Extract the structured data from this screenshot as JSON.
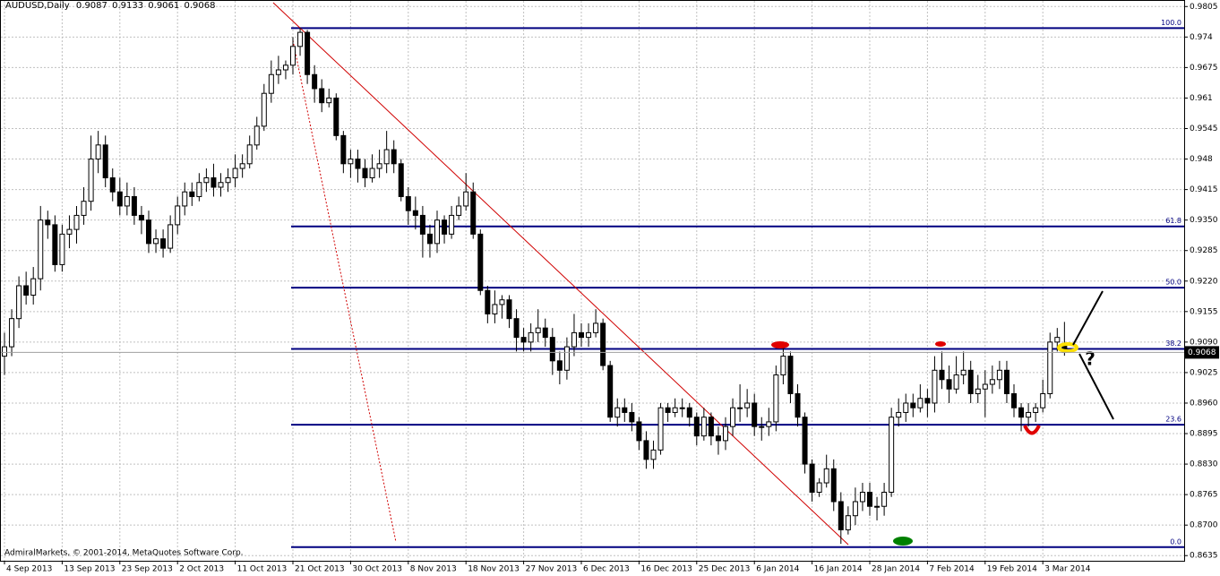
{
  "chart_data": {
    "type": "candlestick",
    "title": "AUDUSD,Daily",
    "categories": [
      "4 Sep 2013",
      null,
      null,
      null,
      null,
      null,
      null,
      null,
      "13 Sep 2013",
      null,
      null,
      null,
      null,
      null,
      null,
      null,
      "23 Sep 2013",
      null,
      null,
      null,
      null,
      null,
      null,
      null,
      "2 Oct 2013",
      null,
      null,
      null,
      null,
      null,
      null,
      null,
      "11 Oct 2013",
      null,
      null,
      null,
      null,
      null,
      null,
      null,
      "21 Oct 2013",
      null,
      null,
      null,
      null,
      null,
      null,
      null,
      "30 Oct 2013",
      null,
      null,
      null,
      null,
      null,
      null,
      null,
      "8 Nov 2013",
      null,
      null,
      null,
      null,
      null,
      null,
      null,
      "18 Nov 2013",
      null,
      null,
      null,
      null,
      null,
      null,
      null,
      "27 Nov 2013",
      null,
      null,
      null,
      null,
      null,
      null,
      null,
      "6 Dec 2013",
      null,
      null,
      null,
      null,
      null,
      null,
      null,
      "16 Dec 2013",
      null,
      null,
      null,
      null,
      null,
      null,
      null,
      "25 Dec 2013",
      null,
      null,
      null,
      null,
      null,
      null,
      null,
      "6 Jan 2014",
      null,
      null,
      null,
      null,
      null,
      null,
      null,
      "16 Jan 2014",
      null,
      null,
      null,
      null,
      null,
      null,
      null,
      "28 Jan 2014",
      null,
      null,
      null,
      null,
      null,
      null,
      null,
      "7 Feb 2014",
      null,
      null,
      null,
      null,
      null,
      null,
      null,
      "19 Feb 2014",
      null,
      null,
      null,
      null,
      null,
      null,
      null,
      "3 Mar 2014",
      null,
      null,
      null
    ],
    "open": [
      0.906,
      0.908,
      0.914,
      0.921,
      0.919,
      0.9225,
      0.935,
      0.934,
      0.9255,
      0.932,
      0.933,
      0.936,
      0.939,
      0.948,
      0.951,
      0.944,
      0.941,
      0.938,
      0.94,
      0.936,
      0.935,
      0.93,
      0.931,
      0.929,
      0.934,
      0.938,
      0.941,
      0.94,
      0.943,
      0.944,
      0.942,
      0.943,
      0.944,
      0.946,
      0.947,
      0.951,
      0.955,
      0.962,
      0.966,
      0.967,
      0.968,
      0.972,
      0.975,
      0.966,
      0.963,
      0.96,
      0.961,
      0.953,
      0.947,
      0.948,
      0.946,
      0.944,
      0.946,
      0.947,
      0.95,
      0.947,
      0.94,
      0.937,
      0.936,
      0.932,
      0.93,
      0.935,
      0.932,
      0.936,
      0.938,
      0.941,
      0.932,
      0.92,
      0.915,
      0.917,
      0.918,
      0.914,
      0.91,
      0.909,
      0.911,
      0.912,
      0.91,
      0.905,
      0.903,
      0.908,
      0.911,
      0.91,
      0.911,
      0.913,
      0.904,
      0.893,
      0.895,
      0.894,
      0.892,
      0.888,
      0.884,
      0.886,
      0.895,
      0.894,
      0.895,
      0.895,
      0.893,
      0.889,
      0.893,
      0.889,
      0.888,
      0.891,
      0.895,
      0.895,
      0.896,
      0.891,
      0.891,
      0.892,
      0.902,
      0.906,
      0.898,
      0.893,
      0.883,
      0.877,
      0.879,
      0.882,
      0.875,
      0.869,
      0.872,
      0.875,
      0.877,
      0.874,
      0.874,
      0.877,
      0.893,
      0.894,
      0.896,
      0.895,
      0.897,
      0.896,
      0.903,
      0.901,
      0.899,
      0.902,
      0.903,
      0.898,
      0.899,
      0.9,
      0.901,
      0.903,
      0.898,
      0.895,
      0.893,
      0.894,
      0.895,
      0.898,
      0.909,
      0.9087
    ],
    "high": [
      0.911,
      0.916,
      0.923,
      0.924,
      0.925,
      0.938,
      0.937,
      0.936,
      0.934,
      0.936,
      0.938,
      0.942,
      0.953,
      0.954,
      0.953,
      0.946,
      0.944,
      0.943,
      0.942,
      0.938,
      0.937,
      0.933,
      0.933,
      0.936,
      0.94,
      0.943,
      0.943,
      0.945,
      0.946,
      0.947,
      0.945,
      0.946,
      0.949,
      0.949,
      0.953,
      0.957,
      0.964,
      0.969,
      0.97,
      0.969,
      0.974,
      0.976,
      0.9755,
      0.968,
      0.965,
      0.963,
      0.962,
      0.954,
      0.95,
      0.95,
      0.948,
      0.949,
      0.95,
      0.954,
      0.952,
      0.948,
      0.942,
      0.94,
      0.938,
      0.934,
      0.937,
      0.936,
      0.938,
      0.94,
      0.945,
      0.943,
      0.933,
      0.921,
      0.92,
      0.919,
      0.919,
      0.916,
      0.912,
      0.913,
      0.916,
      0.914,
      0.912,
      0.907,
      0.91,
      0.915,
      0.913,
      0.913,
      0.916,
      0.914,
      0.905,
      0.897,
      0.897,
      0.896,
      0.893,
      0.89,
      0.888,
      0.896,
      0.896,
      0.897,
      0.897,
      0.896,
      0.894,
      0.895,
      0.894,
      0.891,
      0.893,
      0.897,
      0.9,
      0.899,
      0.898,
      0.893,
      0.895,
      0.904,
      0.909,
      0.907,
      0.9,
      0.894,
      0.884,
      0.88,
      0.885,
      0.884,
      0.877,
      0.874,
      0.878,
      0.879,
      0.879,
      0.876,
      0.879,
      0.895,
      0.897,
      0.898,
      0.898,
      0.9,
      0.899,
      0.906,
      0.907,
      0.904,
      0.906,
      0.907,
      0.905,
      0.902,
      0.903,
      0.904,
      0.905,
      0.905,
      0.9,
      0.896,
      0.896,
      0.896,
      0.901,
      0.911,
      0.912,
      0.9133
    ],
    "low": [
      0.902,
      0.906,
      0.912,
      0.917,
      0.917,
      0.92,
      0.931,
      0.924,
      0.924,
      0.929,
      0.93,
      0.934,
      0.937,
      0.945,
      0.942,
      0.939,
      0.936,
      0.936,
      0.934,
      0.932,
      0.928,
      0.928,
      0.927,
      0.928,
      0.932,
      0.936,
      0.938,
      0.939,
      0.941,
      0.94,
      0.94,
      0.941,
      0.942,
      0.944,
      0.946,
      0.95,
      0.954,
      0.96,
      0.964,
      0.965,
      0.966,
      0.97,
      0.964,
      0.96,
      0.958,
      0.959,
      0.952,
      0.945,
      0.944,
      0.943,
      0.942,
      0.943,
      0.944,
      0.945,
      0.945,
      0.939,
      0.934,
      0.933,
      0.927,
      0.927,
      0.928,
      0.93,
      0.931,
      0.935,
      0.937,
      0.931,
      0.919,
      0.913,
      0.913,
      0.914,
      0.912,
      0.907,
      0.907,
      0.907,
      0.909,
      0.908,
      0.902,
      0.9,
      0.901,
      0.906,
      0.908,
      0.908,
      0.91,
      0.903,
      0.892,
      0.891,
      0.892,
      0.89,
      0.886,
      0.882,
      0.882,
      0.885,
      0.892,
      0.893,
      0.893,
      0.891,
      0.887,
      0.888,
      0.887,
      0.885,
      0.886,
      0.889,
      0.892,
      0.893,
      0.889,
      0.888,
      0.889,
      0.89,
      0.9,
      0.896,
      0.891,
      0.881,
      0.875,
      0.876,
      0.878,
      0.873,
      0.866,
      0.868,
      0.87,
      0.873,
      0.872,
      0.871,
      0.872,
      0.876,
      0.891,
      0.892,
      0.893,
      0.894,
      0.893,
      0.894,
      0.899,
      0.896,
      0.898,
      0.9,
      0.896,
      0.896,
      0.893,
      0.898,
      0.899,
      0.896,
      0.893,
      0.89,
      0.891,
      0.892,
      0.894,
      0.897,
      0.907,
      0.9061
    ],
    "close": [
      0.908,
      0.914,
      0.921,
      0.919,
      0.9225,
      0.935,
      0.934,
      0.9255,
      0.932,
      0.933,
      0.936,
      0.939,
      0.948,
      0.951,
      0.944,
      0.941,
      0.938,
      0.94,
      0.936,
      0.935,
      0.93,
      0.931,
      0.929,
      0.934,
      0.938,
      0.941,
      0.94,
      0.943,
      0.944,
      0.942,
      0.943,
      0.944,
      0.946,
      0.947,
      0.951,
      0.955,
      0.962,
      0.966,
      0.967,
      0.968,
      0.972,
      0.975,
      0.966,
      0.963,
      0.96,
      0.961,
      0.953,
      0.947,
      0.948,
      0.946,
      0.944,
      0.946,
      0.947,
      0.95,
      0.947,
      0.94,
      0.937,
      0.936,
      0.932,
      0.93,
      0.935,
      0.932,
      0.936,
      0.938,
      0.941,
      0.932,
      0.92,
      0.915,
      0.917,
      0.918,
      0.914,
      0.91,
      0.909,
      0.911,
      0.912,
      0.91,
      0.905,
      0.903,
      0.908,
      0.911,
      0.91,
      0.911,
      0.913,
      0.904,
      0.893,
      0.895,
      0.894,
      0.892,
      0.888,
      0.884,
      0.886,
      0.895,
      0.894,
      0.895,
      0.895,
      0.893,
      0.889,
      0.893,
      0.889,
      0.888,
      0.891,
      0.895,
      0.895,
      0.896,
      0.891,
      0.891,
      0.892,
      0.902,
      0.906,
      0.898,
      0.893,
      0.883,
      0.877,
      0.879,
      0.882,
      0.875,
      0.869,
      0.872,
      0.875,
      0.877,
      0.874,
      0.874,
      0.877,
      0.893,
      0.894,
      0.896,
      0.895,
      0.897,
      0.896,
      0.903,
      0.901,
      0.899,
      0.902,
      0.903,
      0.898,
      0.899,
      0.9,
      0.901,
      0.903,
      0.898,
      0.895,
      0.893,
      0.894,
      0.895,
      0.898,
      0.909,
      0.91,
      0.9068
    ],
    "up_color": "#ffffff",
    "down_color": "#000000",
    "wick_color": "#000000",
    "ylim": [
      0.8624,
      0.9817
    ],
    "yticks": [
      0.9805,
      0.974,
      0.9675,
      0.961,
      0.9545,
      0.948,
      0.9415,
      {
        "value": 0.935,
        "label": "0.9350"
      },
      0.9285,
      {
        "value": 0.922,
        "label": "0.9220"
      },
      0.9155,
      {
        "value": 0.909,
        "label": "0.9090"
      },
      0.9025,
      {
        "value": 0.896,
        "label": "0.8960"
      },
      0.8895,
      {
        "value": 0.883,
        "label": "0.8830"
      },
      0.8765,
      {
        "value": 0.87,
        "label": "0.8700"
      },
      0.8635
    ],
    "grid": true,
    "fibo": {
      "high": 0.9759,
      "low": 0.8653,
      "color": "#000080",
      "levels": [
        {
          "value": 100,
          "label": "100.0"
        },
        {
          "value": 61.8,
          "label": "61.8"
        },
        {
          "value": 50,
          "label": "50.0"
        },
        {
          "value": 38.2,
          "label": "38.2"
        },
        {
          "value": 23.6,
          "label": "23.6"
        },
        {
          "value": 0,
          "label": "0.0"
        }
      ]
    },
    "annotation": "?",
    "copyright": "AdmiralMarkets, © 2001-2014, MetaQuotes Software Corp."
  }
}
